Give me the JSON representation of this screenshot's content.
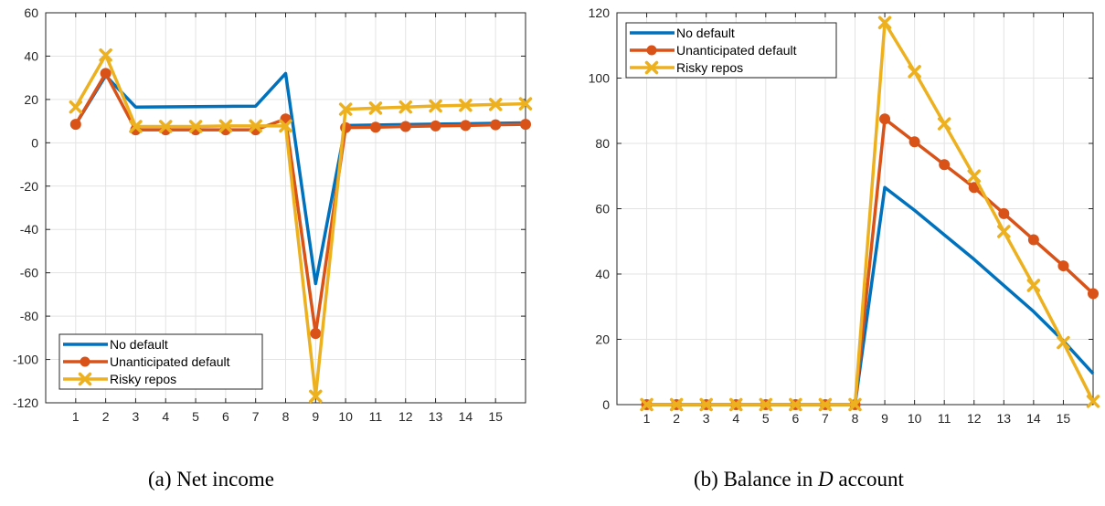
{
  "colors": {
    "no_default": "#0072BD",
    "unanticipated": "#D95319",
    "risky": "#EDB120",
    "grid": "#e3e3e3",
    "axis": "#262626"
  },
  "chart_data": [
    {
      "type": "line",
      "caption_prefix": "(a) ",
      "caption_text": "Net income",
      "caption_italic": "",
      "caption_suffix": "",
      "x": [
        1,
        2,
        3,
        4,
        5,
        6,
        7,
        8,
        9,
        10,
        11,
        12,
        13,
        14,
        15,
        16
      ],
      "xticks": [
        1,
        2,
        3,
        4,
        5,
        6,
        7,
        8,
        9,
        10,
        11,
        12,
        13,
        14,
        15
      ],
      "xlim": [
        0,
        16
      ],
      "ylim": [
        -120,
        60
      ],
      "yticks": [
        -120,
        -100,
        -80,
        -60,
        -40,
        -20,
        0,
        20,
        40,
        60
      ],
      "grid": true,
      "legend_location": "bottom-left",
      "series": [
        {
          "name": "No default",
          "color_key": "no_default",
          "marker": "none",
          "values": [
            8.5,
            31,
            16.5,
            16.6,
            16.7,
            16.8,
            16.9,
            32,
            -65,
            8,
            8.2,
            8.4,
            8.6,
            8.8,
            9.0,
            9.2
          ]
        },
        {
          "name": "Unanticipated default",
          "color_key": "unanticipated",
          "marker": "circle",
          "values": [
            8.5,
            32,
            6,
            6,
            6,
            6,
            6,
            11,
            -88,
            7,
            7.2,
            7.5,
            7.8,
            8.0,
            8.3,
            8.5
          ]
        },
        {
          "name": "Risky repos",
          "color_key": "risky",
          "marker": "x",
          "values": [
            16.5,
            40.5,
            7.5,
            7.5,
            7.5,
            7.8,
            7.8,
            7.8,
            -117,
            15.5,
            16,
            16.5,
            17,
            17.3,
            17.7,
            18
          ]
        }
      ]
    },
    {
      "type": "line",
      "caption_prefix": "(b) ",
      "caption_text": "Balance in ",
      "caption_italic": "D",
      "caption_suffix": " account",
      "x": [
        1,
        2,
        3,
        4,
        5,
        6,
        7,
        8,
        9,
        10,
        11,
        12,
        13,
        14,
        15,
        16
      ],
      "xticks": [
        1,
        2,
        3,
        4,
        5,
        6,
        7,
        8,
        9,
        10,
        11,
        12,
        13,
        14,
        15
      ],
      "xlim": [
        0,
        16
      ],
      "ylim": [
        0,
        120
      ],
      "yticks": [
        0,
        20,
        40,
        60,
        80,
        100,
        120
      ],
      "grid": true,
      "legend_location": "top-left",
      "series": [
        {
          "name": "No default",
          "color_key": "no_default",
          "marker": "none",
          "values": [
            0,
            0,
            0,
            0,
            0,
            0,
            0,
            0,
            66.5,
            59.5,
            52,
            44.5,
            36.5,
            28.5,
            19.5,
            9.5
          ]
        },
        {
          "name": "Unanticipated default",
          "color_key": "unanticipated",
          "marker": "circle",
          "values": [
            0,
            0,
            0,
            0,
            0,
            0,
            0,
            0,
            87.5,
            80.5,
            73.5,
            66.5,
            58.5,
            50.5,
            42.5,
            34
          ]
        },
        {
          "name": "Risky repos",
          "color_key": "risky",
          "marker": "x",
          "values": [
            0,
            0,
            0,
            0,
            0,
            0,
            0,
            0,
            117,
            102,
            86,
            70,
            53,
            36.5,
            19,
            1
          ]
        }
      ]
    }
  ]
}
